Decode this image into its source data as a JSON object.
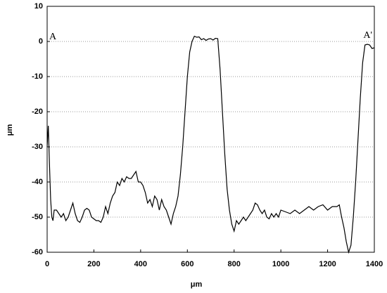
{
  "chart_data": {
    "type": "line",
    "xlabel": "μm",
    "ylabel": "μm",
    "annotations": [
      "A",
      "A'"
    ],
    "grid": true,
    "color": "#000000",
    "xlim": [
      0,
      1400
    ],
    "xticks": [
      0,
      200,
      400,
      600,
      800,
      1000,
      1200,
      1400
    ],
    "ylim": [
      -60,
      10
    ],
    "yticks": [
      -60,
      -50,
      -40,
      -30,
      -20,
      -10,
      0,
      10
    ],
    "x": [
      0,
      5,
      10,
      15,
      20,
      25,
      30,
      40,
      50,
      60,
      70,
      80,
      90,
      100,
      110,
      120,
      130,
      140,
      150,
      160,
      170,
      180,
      190,
      200,
      210,
      220,
      230,
      240,
      250,
      260,
      270,
      280,
      290,
      300,
      310,
      320,
      330,
      340,
      350,
      360,
      370,
      380,
      390,
      400,
      410,
      420,
      430,
      440,
      450,
      460,
      470,
      480,
      490,
      500,
      510,
      520,
      530,
      540,
      550,
      560,
      570,
      580,
      590,
      600,
      610,
      620,
      630,
      640,
      650,
      660,
      670,
      680,
      690,
      700,
      710,
      720,
      730,
      740,
      750,
      760,
      770,
      780,
      790,
      800,
      810,
      820,
      830,
      840,
      850,
      860,
      870,
      880,
      890,
      900,
      910,
      920,
      930,
      940,
      950,
      960,
      970,
      980,
      990,
      1000,
      1020,
      1040,
      1060,
      1080,
      1100,
      1120,
      1140,
      1160,
      1180,
      1200,
      1220,
      1240,
      1250,
      1260,
      1270,
      1280,
      1290,
      1300,
      1310,
      1320,
      1330,
      1340,
      1350,
      1360,
      1370,
      1380,
      1390,
      1400
    ],
    "values": [
      -30,
      -24,
      -35,
      -45,
      -50,
      -51,
      -48,
      -48,
      -49,
      -50,
      -49,
      -51,
      -50,
      -48,
      -46,
      -49,
      -51,
      -51.5,
      -50,
      -48,
      -47.5,
      -48,
      -50,
      -50.5,
      -51,
      -51,
      -51.5,
      -50,
      -47,
      -49,
      -46,
      -44,
      -43,
      -40,
      -41,
      -39,
      -40,
      -38.5,
      -39,
      -39,
      -38,
      -37,
      -40,
      -40,
      -41,
      -43,
      -46,
      -45,
      -47,
      -44,
      -45,
      -48,
      -45,
      -47,
      -48,
      -50,
      -52,
      -49,
      -47,
      -44,
      -38,
      -30,
      -20,
      -10,
      -3,
      0,
      1.5,
      1.2,
      1.3,
      0.5,
      0.8,
      0.3,
      0.7,
      0.8,
      0.4,
      0.9,
      0.8,
      -8,
      -20,
      -32,
      -42,
      -48,
      -52,
      -54,
      -51,
      -52,
      -51,
      -50,
      -51,
      -50,
      -49,
      -48,
      -46,
      -46.5,
      -48,
      -49,
      -48,
      -50,
      -50.5,
      -49,
      -50,
      -49,
      -50,
      -48,
      -48.5,
      -49,
      -48,
      -49,
      -48,
      -47,
      -48,
      -47,
      -46.5,
      -48,
      -47,
      -47,
      -46.5,
      -50,
      -53,
      -57,
      -60,
      -58,
      -50,
      -40,
      -28,
      -16,
      -6,
      -1,
      -0.8,
      -1,
      -2,
      -1.8
    ]
  }
}
